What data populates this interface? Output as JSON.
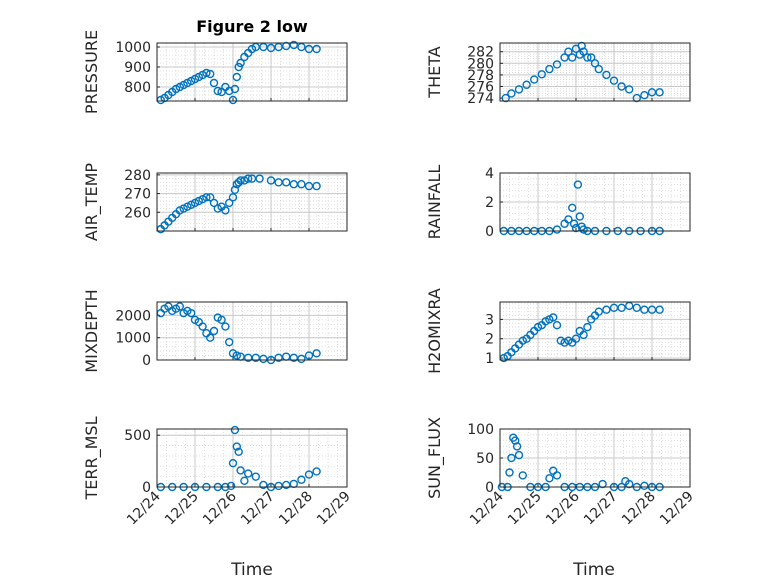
{
  "figure": {
    "title": "Figure 2 low",
    "marker_color": "#0072BD",
    "xlabel": "Time"
  },
  "chart_data": [
    {
      "type": "scatter",
      "ylabel": "PRESSURE",
      "xlim": [
        0,
        5
      ],
      "ylim": [
        730,
        1020
      ],
      "yticks": [
        800,
        900,
        1000
      ],
      "ytick_labels": [
        "800",
        "900",
        "1000"
      ],
      "xticks": [
        0,
        1,
        2,
        3,
        4,
        5
      ],
      "xtick_labels": [
        "12/24",
        "12/25",
        "12/26",
        "12/27",
        "12/28",
        "12/29"
      ],
      "show_xtick_labels": false,
      "grid": true,
      "series": [
        {
          "x": [
            0.1,
            0.2,
            0.3,
            0.4,
            0.5,
            0.6,
            0.7,
            0.8,
            0.9,
            1.0,
            1.1,
            1.2,
            1.3,
            1.4,
            1.5,
            1.6,
            1.7,
            1.8,
            1.9,
            2.0,
            2.05,
            2.1,
            2.15,
            2.2,
            2.3,
            2.4,
            2.5,
            2.6,
            2.8,
            3.0,
            3.2,
            3.4,
            3.6,
            3.8,
            4.0,
            4.2
          ],
          "y": [
            735,
            745,
            760,
            775,
            790,
            800,
            810,
            820,
            830,
            840,
            850,
            860,
            870,
            865,
            820,
            780,
            775,
            800,
            780,
            735,
            790,
            850,
            900,
            920,
            950,
            970,
            990,
            1000,
            1000,
            995,
            1000,
            1005,
            1010,
            1000,
            990,
            990
          ]
        }
      ]
    },
    {
      "type": "scatter",
      "ylabel": "THETA",
      "xlim": [
        0,
        5
      ],
      "ylim": [
        273.5,
        283.5
      ],
      "yticks": [
        274,
        276,
        278,
        280,
        282
      ],
      "ytick_labels": [
        "274",
        "276",
        "278",
        "280",
        "282"
      ],
      "xticks": [
        0,
        1,
        2,
        3,
        4,
        5
      ],
      "xtick_labels": [
        "12/24",
        "12/25",
        "12/26",
        "12/27",
        "12/28",
        "12/29"
      ],
      "show_xtick_labels": false,
      "grid": true,
      "series": [
        {
          "x": [
            0.15,
            0.3,
            0.5,
            0.7,
            0.9,
            1.1,
            1.3,
            1.5,
            1.7,
            1.8,
            1.9,
            2.0,
            2.1,
            2.15,
            2.2,
            2.3,
            2.4,
            2.5,
            2.6,
            2.8,
            3.0,
            3.2,
            3.4,
            3.6,
            3.8,
            4.0,
            4.2
          ],
          "y": [
            274,
            274.8,
            275.5,
            276.3,
            277.2,
            278.1,
            279.0,
            279.8,
            281.0,
            282.0,
            281.0,
            282.5,
            281.5,
            283.0,
            282.0,
            281.0,
            281.0,
            280.0,
            279.0,
            278.0,
            277.0,
            276.0,
            275.5,
            274.0,
            274.5,
            275.0,
            275.0
          ]
        }
      ]
    },
    {
      "type": "scatter",
      "ylabel": "AIR_TEMP",
      "xlim": [
        0,
        5
      ],
      "ylim": [
        250,
        281
      ],
      "yticks": [
        260,
        270,
        280
      ],
      "ytick_labels": [
        "260",
        "270",
        "280"
      ],
      "xticks": [
        0,
        1,
        2,
        3,
        4,
        5
      ],
      "xtick_labels": [
        "12/24",
        "12/25",
        "12/26",
        "12/27",
        "12/28",
        "12/29"
      ],
      "show_xtick_labels": false,
      "grid": true,
      "series": [
        {
          "x": [
            0.1,
            0.2,
            0.3,
            0.4,
            0.5,
            0.6,
            0.7,
            0.8,
            0.9,
            1.0,
            1.1,
            1.2,
            1.3,
            1.4,
            1.5,
            1.6,
            1.7,
            1.8,
            1.9,
            2.0,
            2.05,
            2.1,
            2.15,
            2.2,
            2.3,
            2.4,
            2.5,
            2.7,
            3.0,
            3.2,
            3.4,
            3.6,
            3.8,
            4.0,
            4.2
          ],
          "y": [
            251,
            253,
            255,
            257,
            259,
            261,
            262,
            263,
            264,
            265,
            266,
            267,
            268,
            268,
            265,
            262,
            263,
            261,
            265,
            268,
            272,
            275,
            276,
            277,
            277,
            278,
            278,
            278,
            277,
            276,
            276,
            275,
            275,
            274,
            274
          ]
        }
      ]
    },
    {
      "type": "scatter",
      "ylabel": "RAINFALL",
      "xlim": [
        0,
        5
      ],
      "ylim": [
        0,
        4
      ],
      "yticks": [
        0,
        2,
        4
      ],
      "ytick_labels": [
        "0",
        "2",
        "4"
      ],
      "xticks": [
        0,
        1,
        2,
        3,
        4,
        5
      ],
      "xtick_labels": [
        "12/24",
        "12/25",
        "12/26",
        "12/27",
        "12/28",
        "12/29"
      ],
      "show_xtick_labels": false,
      "grid": true,
      "series": [
        {
          "x": [
            0.1,
            0.3,
            0.5,
            0.7,
            0.9,
            1.1,
            1.3,
            1.5,
            1.7,
            1.8,
            1.9,
            1.95,
            2.0,
            2.05,
            2.1,
            2.15,
            2.2,
            2.3,
            2.5,
            2.8,
            3.1,
            3.4,
            3.7,
            4.0,
            4.2
          ],
          "y": [
            0,
            0,
            0,
            0,
            0,
            0,
            0,
            0.1,
            0.5,
            0.8,
            1.6,
            0.5,
            0.2,
            3.2,
            1.0,
            0.3,
            0.1,
            0,
            0,
            0,
            0,
            0,
            0,
            0,
            0
          ]
        }
      ]
    },
    {
      "type": "scatter",
      "ylabel": "MIXDEPTH",
      "xlim": [
        0,
        5
      ],
      "ylim": [
        0,
        2600
      ],
      "yticks": [
        0,
        1000,
        2000
      ],
      "ytick_labels": [
        "0",
        "1000",
        "2000"
      ],
      "xticks": [
        0,
        1,
        2,
        3,
        4,
        5
      ],
      "xtick_labels": [
        "12/24",
        "12/25",
        "12/26",
        "12/27",
        "12/28",
        "12/29"
      ],
      "show_xtick_labels": false,
      "grid": true,
      "series": [
        {
          "x": [
            0.1,
            0.2,
            0.3,
            0.4,
            0.5,
            0.6,
            0.7,
            0.8,
            0.9,
            1.0,
            1.1,
            1.2,
            1.3,
            1.4,
            1.5,
            1.6,
            1.7,
            1.8,
            1.9,
            2.0,
            2.1,
            2.2,
            2.4,
            2.6,
            2.8,
            3.0,
            3.2,
            3.4,
            3.6,
            3.8,
            4.0,
            4.2
          ],
          "y": [
            2100,
            2300,
            2400,
            2200,
            2300,
            2400,
            2100,
            2200,
            2100,
            1800,
            1700,
            1500,
            1200,
            1000,
            1300,
            1900,
            1800,
            1500,
            800,
            300,
            200,
            150,
            100,
            100,
            50,
            0,
            100,
            150,
            100,
            50,
            200,
            300
          ]
        }
      ]
    },
    {
      "type": "scatter",
      "ylabel": "H2OMIXRA",
      "xlim": [
        0,
        5
      ],
      "ylim": [
        0.9,
        3.9
      ],
      "yticks": [
        1,
        2,
        3
      ],
      "ytick_labels": [
        "1",
        "2",
        "3"
      ],
      "xticks": [
        0,
        1,
        2,
        3,
        4,
        5
      ],
      "xtick_labels": [
        "12/24",
        "12/25",
        "12/26",
        "12/27",
        "12/28",
        "12/29"
      ],
      "show_xtick_labels": false,
      "grid": true,
      "series": [
        {
          "x": [
            0.1,
            0.2,
            0.3,
            0.4,
            0.5,
            0.6,
            0.7,
            0.8,
            0.9,
            1.0,
            1.1,
            1.2,
            1.3,
            1.4,
            1.5,
            1.6,
            1.7,
            1.8,
            1.9,
            2.0,
            2.1,
            2.2,
            2.3,
            2.4,
            2.5,
            2.6,
            2.8,
            3.0,
            3.2,
            3.4,
            3.6,
            3.8,
            4.0,
            4.2
          ],
          "y": [
            1.0,
            1.1,
            1.3,
            1.5,
            1.7,
            1.9,
            2.0,
            2.2,
            2.4,
            2.6,
            2.7,
            2.9,
            3.0,
            3.1,
            2.7,
            1.9,
            1.8,
            1.9,
            1.8,
            2.0,
            2.4,
            2.2,
            2.6,
            3.0,
            3.2,
            3.4,
            3.5,
            3.6,
            3.6,
            3.7,
            3.6,
            3.5,
            3.5,
            3.5
          ]
        }
      ]
    },
    {
      "type": "scatter",
      "ylabel": "TERR_MSL",
      "xlim": [
        0,
        5
      ],
      "ylim": [
        0,
        560
      ],
      "yticks": [
        0,
        500
      ],
      "ytick_labels": [
        "0",
        "500"
      ],
      "xticks": [
        0,
        1,
        2,
        3,
        4,
        5
      ],
      "xtick_labels": [
        "12/24",
        "12/25",
        "12/26",
        "12/27",
        "12/28",
        "12/29"
      ],
      "show_xtick_labels": true,
      "grid": true,
      "series": [
        {
          "x": [
            0.1,
            0.4,
            0.7,
            1.0,
            1.3,
            1.6,
            1.8,
            1.95,
            2.0,
            2.05,
            2.1,
            2.15,
            2.2,
            2.3,
            2.4,
            2.6,
            2.8,
            3.0,
            3.2,
            3.4,
            3.6,
            3.8,
            4.0,
            4.2
          ],
          "y": [
            0,
            0,
            0,
            0,
            0,
            0,
            0,
            10,
            230,
            550,
            390,
            340,
            160,
            60,
            130,
            100,
            20,
            0,
            10,
            20,
            30,
            70,
            120,
            150
          ]
        }
      ]
    },
    {
      "type": "scatter",
      "ylabel": "SUN_FLUX",
      "xlim": [
        0,
        5
      ],
      "ylim": [
        0,
        100
      ],
      "yticks": [
        0,
        50,
        100
      ],
      "ytick_labels": [
        "0",
        "50",
        "100"
      ],
      "xticks": [
        0,
        1,
        2,
        3,
        4,
        5
      ],
      "xtick_labels": [
        "12/24",
        "12/25",
        "12/26",
        "12/27",
        "12/28",
        "12/29"
      ],
      "show_xtick_labels": true,
      "grid": true,
      "series": [
        {
          "x": [
            0.05,
            0.2,
            0.25,
            0.3,
            0.35,
            0.4,
            0.45,
            0.5,
            0.6,
            0.8,
            1.0,
            1.2,
            1.3,
            1.4,
            1.5,
            1.7,
            1.9,
            2.1,
            2.3,
            2.5,
            2.7,
            3.0,
            3.2,
            3.3,
            3.4,
            3.6,
            3.8,
            4.0,
            4.2
          ],
          "y": [
            0,
            0,
            25,
            50,
            85,
            80,
            70,
            55,
            20,
            0,
            0,
            0,
            15,
            28,
            20,
            0,
            0,
            0,
            0,
            0,
            5,
            0,
            0,
            10,
            5,
            0,
            2,
            0,
            0
          ]
        }
      ]
    }
  ]
}
